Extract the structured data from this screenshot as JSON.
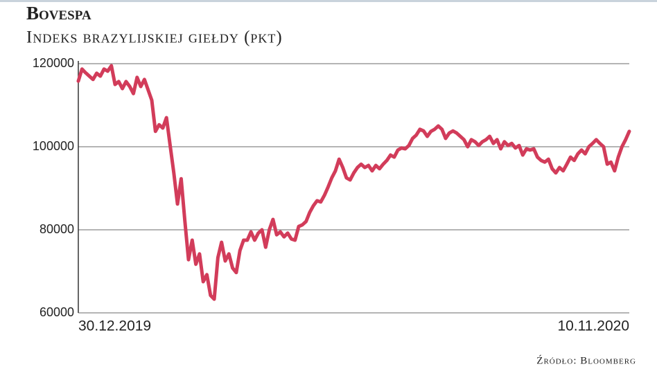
{
  "chart_data": {
    "type": "line",
    "title": "Bovespa",
    "subtitle": "Indeks brazylijskiej giełdy (pkt)",
    "source": "Źródło: Bloomberg",
    "categories": [
      "30.12.2019",
      null,
      null,
      null,
      null,
      null,
      null,
      null,
      null,
      null,
      null,
      null,
      null,
      null,
      null,
      null,
      null,
      null,
      null,
      null,
      null,
      null,
      null,
      null,
      null,
      null,
      null,
      null,
      null,
      null,
      null,
      null,
      null,
      null,
      null,
      null,
      null,
      null,
      null,
      null,
      null,
      null,
      null,
      null,
      null,
      null,
      null,
      null,
      null,
      null,
      null,
      null,
      null,
      null,
      null,
      null,
      null,
      null,
      null,
      null,
      null,
      null,
      null,
      null,
      null,
      null,
      null,
      null,
      null,
      null,
      null,
      null,
      null,
      null,
      null,
      null,
      null,
      null,
      null,
      null,
      null,
      null,
      null,
      null,
      null,
      null,
      null,
      null,
      null,
      null,
      null,
      null,
      null,
      null,
      null,
      null,
      null,
      null,
      null,
      null,
      null,
      null,
      null,
      null,
      null,
      null,
      null,
      null,
      null,
      null,
      null,
      null,
      null,
      null,
      null,
      null,
      null,
      null,
      null,
      null,
      null,
      null,
      null,
      null,
      null,
      null,
      null,
      null,
      null,
      null,
      null,
      null,
      null,
      null,
      null,
      null,
      null,
      null,
      null,
      null,
      null,
      null,
      null,
      null,
      null,
      null,
      null,
      null,
      null,
      null,
      "10.11.2020"
    ],
    "values": [
      115800,
      118700,
      117800,
      117000,
      116200,
      117700,
      117000,
      118700,
      118200,
      119500,
      115000,
      115700,
      114000,
      115700,
      114500,
      112800,
      116700,
      114500,
      116200,
      113700,
      111200,
      103700,
      105300,
      104500,
      107000,
      100300,
      93700,
      86200,
      92300,
      82200,
      72800,
      77500,
      71700,
      74200,
      67500,
      69200,
      64200,
      63300,
      73300,
      77000,
      72500,
      74200,
      70800,
      69700,
      75000,
      77500,
      77500,
      79500,
      77500,
      79200,
      80000,
      75800,
      80000,
      82500,
      78800,
      79500,
      78300,
      79200,
      77800,
      77500,
      80800,
      81200,
      82000,
      84200,
      85800,
      87000,
      86700,
      88300,
      90300,
      92500,
      94200,
      97000,
      95000,
      92500,
      92000,
      93700,
      95000,
      95800,
      95000,
      95500,
      94200,
      95500,
      94700,
      95800,
      96700,
      98000,
      97500,
      99200,
      99700,
      99500,
      100300,
      102000,
      102800,
      104200,
      103800,
      102500,
      103700,
      104200,
      105000,
      104200,
      102000,
      103300,
      103800,
      103300,
      102500,
      101700,
      100000,
      101700,
      101200,
      100300,
      101200,
      101700,
      102500,
      100800,
      101700,
      99500,
      101200,
      100300,
      100800,
      99700,
      100300,
      98000,
      99500,
      99200,
      99500,
      97500,
      96700,
      96300,
      97000,
      94700,
      93700,
      95000,
      94200,
      95800,
      97500,
      96700,
      98300,
      99200,
      98300,
      100000,
      100800,
      101700,
      100800,
      100000,
      95800,
      96300,
      94200,
      97500,
      100000,
      101700,
      103700
    ],
    "color": "#d23c5a",
    "ylim": [
      60000,
      120000
    ],
    "yticks": [
      60000,
      80000,
      100000,
      120000
    ],
    "grid": true
  }
}
